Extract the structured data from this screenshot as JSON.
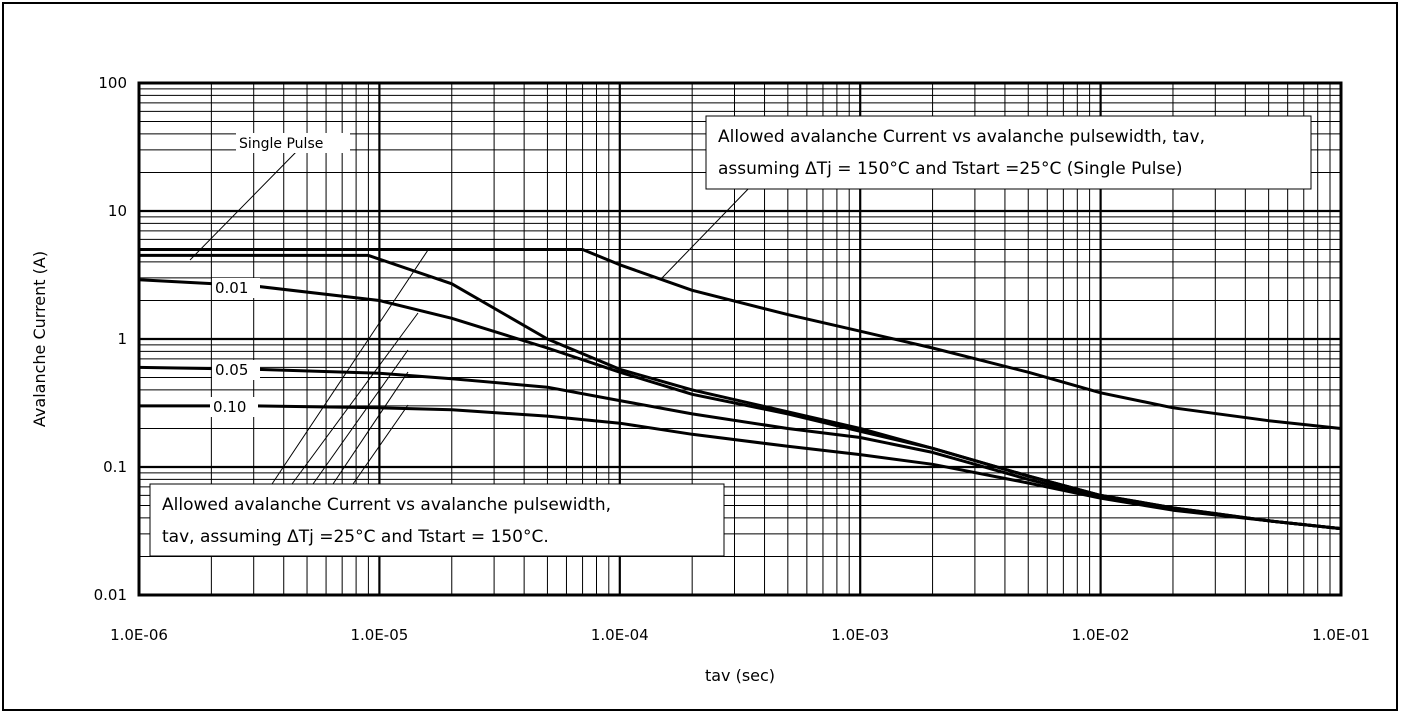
{
  "chart_data": {
    "type": "line",
    "title": "",
    "xlabel": "tav (sec)",
    "ylabel": "Avalanche Current (A)",
    "x_scale": "log",
    "y_scale": "log",
    "xlim": [
      1e-06,
      0.1
    ],
    "ylim": [
      0.01,
      100
    ],
    "grid": true,
    "x_tick_labels": [
      "1.0E-06",
      "1.0E-05",
      "1.0E-04",
      "1.0E-03",
      "1.0E-02",
      "1.0E-01"
    ],
    "y_tick_labels": [
      "100",
      "10",
      "1",
      "0.1",
      "0.01"
    ],
    "series": [
      {
        "name": "Single Pulse",
        "x": [
          1e-06,
          7e-05,
          0.0001,
          0.0002,
          0.0005,
          0.001,
          0.002,
          0.005,
          0.01,
          0.02,
          0.05,
          0.1
        ],
        "y": [
          5.0,
          5.0,
          3.8,
          2.4,
          1.55,
          1.15,
          0.85,
          0.55,
          0.38,
          0.29,
          0.23,
          0.2
        ]
      },
      {
        "name": "",
        "x": [
          1e-06,
          9e-06,
          2e-05,
          5e-05,
          0.0001,
          0.0002,
          0.0005,
          0.001,
          0.002,
          0.005,
          0.01,
          0.02,
          0.05,
          0.1
        ],
        "y": [
          4.5,
          4.5,
          2.7,
          1.0,
          0.58,
          0.4,
          0.27,
          0.2,
          0.14,
          0.085,
          0.06,
          0.048,
          0.038,
          0.033
        ]
      },
      {
        "name": "0.01",
        "x": [
          1e-06,
          3e-06,
          1e-05,
          2e-05,
          5e-05,
          0.0001,
          0.0002,
          0.0005,
          0.001,
          0.002,
          0.005,
          0.01,
          0.02,
          0.05,
          0.1
        ],
        "y": [
          2.9,
          2.6,
          2.0,
          1.45,
          0.85,
          0.55,
          0.37,
          0.26,
          0.19,
          0.14,
          0.085,
          0.06,
          0.048,
          0.038,
          0.033
        ]
      },
      {
        "name": "0.05",
        "x": [
          1e-06,
          3e-06,
          1e-05,
          2e-05,
          5e-05,
          0.0001,
          0.0002,
          0.0005,
          0.001,
          0.002,
          0.005,
          0.01,
          0.02,
          0.05,
          0.1
        ],
        "y": [
          0.6,
          0.58,
          0.54,
          0.49,
          0.42,
          0.33,
          0.26,
          0.2,
          0.17,
          0.13,
          0.08,
          0.058,
          0.047,
          0.038,
          0.033
        ]
      },
      {
        "name": "0.10",
        "x": [
          1e-06,
          3e-06,
          1e-05,
          2e-05,
          5e-05,
          0.0001,
          0.0002,
          0.0005,
          0.001,
          0.002,
          0.005,
          0.01,
          0.02,
          0.05,
          0.1
        ],
        "y": [
          0.3,
          0.3,
          0.29,
          0.28,
          0.25,
          0.22,
          0.18,
          0.145,
          0.125,
          0.105,
          0.075,
          0.057,
          0.046,
          0.038,
          0.033
        ]
      }
    ],
    "annotations": {
      "single_pulse": "Single Pulse",
      "top_box_line1": "Allowed avalanche Current vs avalanche pulsewidth, tav,",
      "top_box_line2": "assuming ΔTj = 150°C and Tstart =25°C (Single Pulse)",
      "bottom_box_line1": "Allowed avalanche Current vs avalanche pulsewidth,",
      "bottom_box_line2": "tav,  assuming ΔTj =25°C and Tstart = 150°C."
    }
  }
}
